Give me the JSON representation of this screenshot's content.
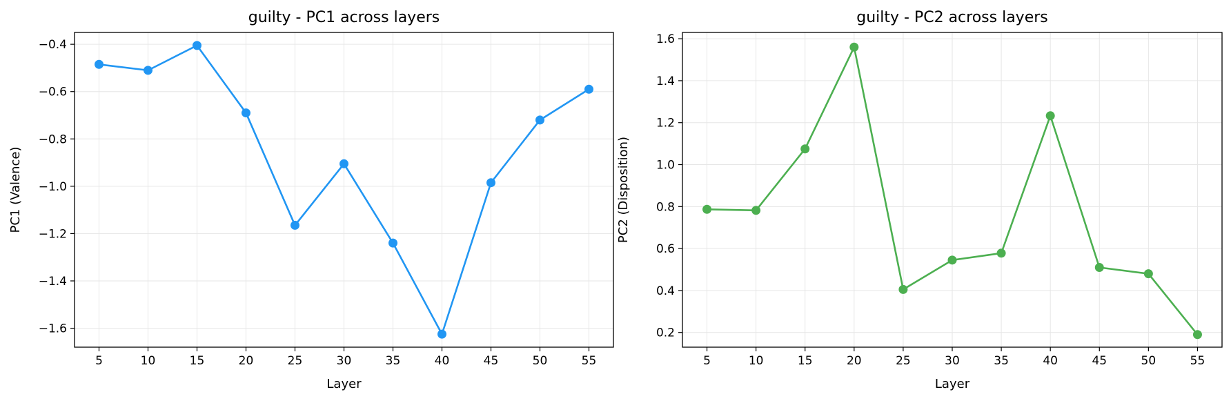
{
  "chart_data": [
    {
      "type": "line",
      "title": "guilty - PC1 across layers",
      "xlabel": "Layer",
      "ylabel": "PC1 (Valence)",
      "x": [
        5,
        10,
        15,
        20,
        25,
        30,
        35,
        40,
        45,
        50,
        55
      ],
      "xticks": [
        "5",
        "10",
        "15",
        "20",
        "25",
        "30",
        "35",
        "40",
        "45",
        "50",
        "55"
      ],
      "yticks": [
        "−1.6",
        "−1.4",
        "−1.2",
        "−1.0",
        "−0.8",
        "−0.6",
        "−0.4"
      ],
      "ytick_values": [
        -1.6,
        -1.4,
        -1.2,
        -1.0,
        -0.8,
        -0.6,
        -0.4
      ],
      "xlim": [
        2.5,
        57.5
      ],
      "ylim": [
        -1.68,
        -0.35
      ],
      "grid": true,
      "color": "#2196F3",
      "series": [
        {
          "values": [
            -0.485,
            -0.51,
            -0.405,
            -0.69,
            -1.165,
            -0.905,
            -1.24,
            -1.625,
            -0.985,
            -0.72,
            -0.59
          ]
        }
      ]
    },
    {
      "type": "line",
      "title": "guilty - PC2 across layers",
      "xlabel": "Layer",
      "ylabel": "PC2 (Disposition)",
      "x": [
        5,
        10,
        15,
        20,
        25,
        30,
        35,
        40,
        45,
        50,
        55
      ],
      "xticks": [
        "5",
        "10",
        "15",
        "20",
        "25",
        "30",
        "35",
        "40",
        "45",
        "50",
        "55"
      ],
      "yticks": [
        "0.2",
        "0.4",
        "0.6",
        "0.8",
        "1.0",
        "1.2",
        "1.4",
        "1.6"
      ],
      "ytick_values": [
        0.2,
        0.4,
        0.6,
        0.8,
        1.0,
        1.2,
        1.4,
        1.6
      ],
      "xlim": [
        2.5,
        57.5
      ],
      "ylim": [
        0.13,
        1.63
      ],
      "grid": true,
      "color": "#4CAF50",
      "series": [
        {
          "values": [
            0.787,
            0.782,
            1.075,
            1.56,
            0.405,
            0.545,
            0.578,
            1.233,
            0.51,
            0.48,
            0.19
          ]
        }
      ]
    }
  ]
}
